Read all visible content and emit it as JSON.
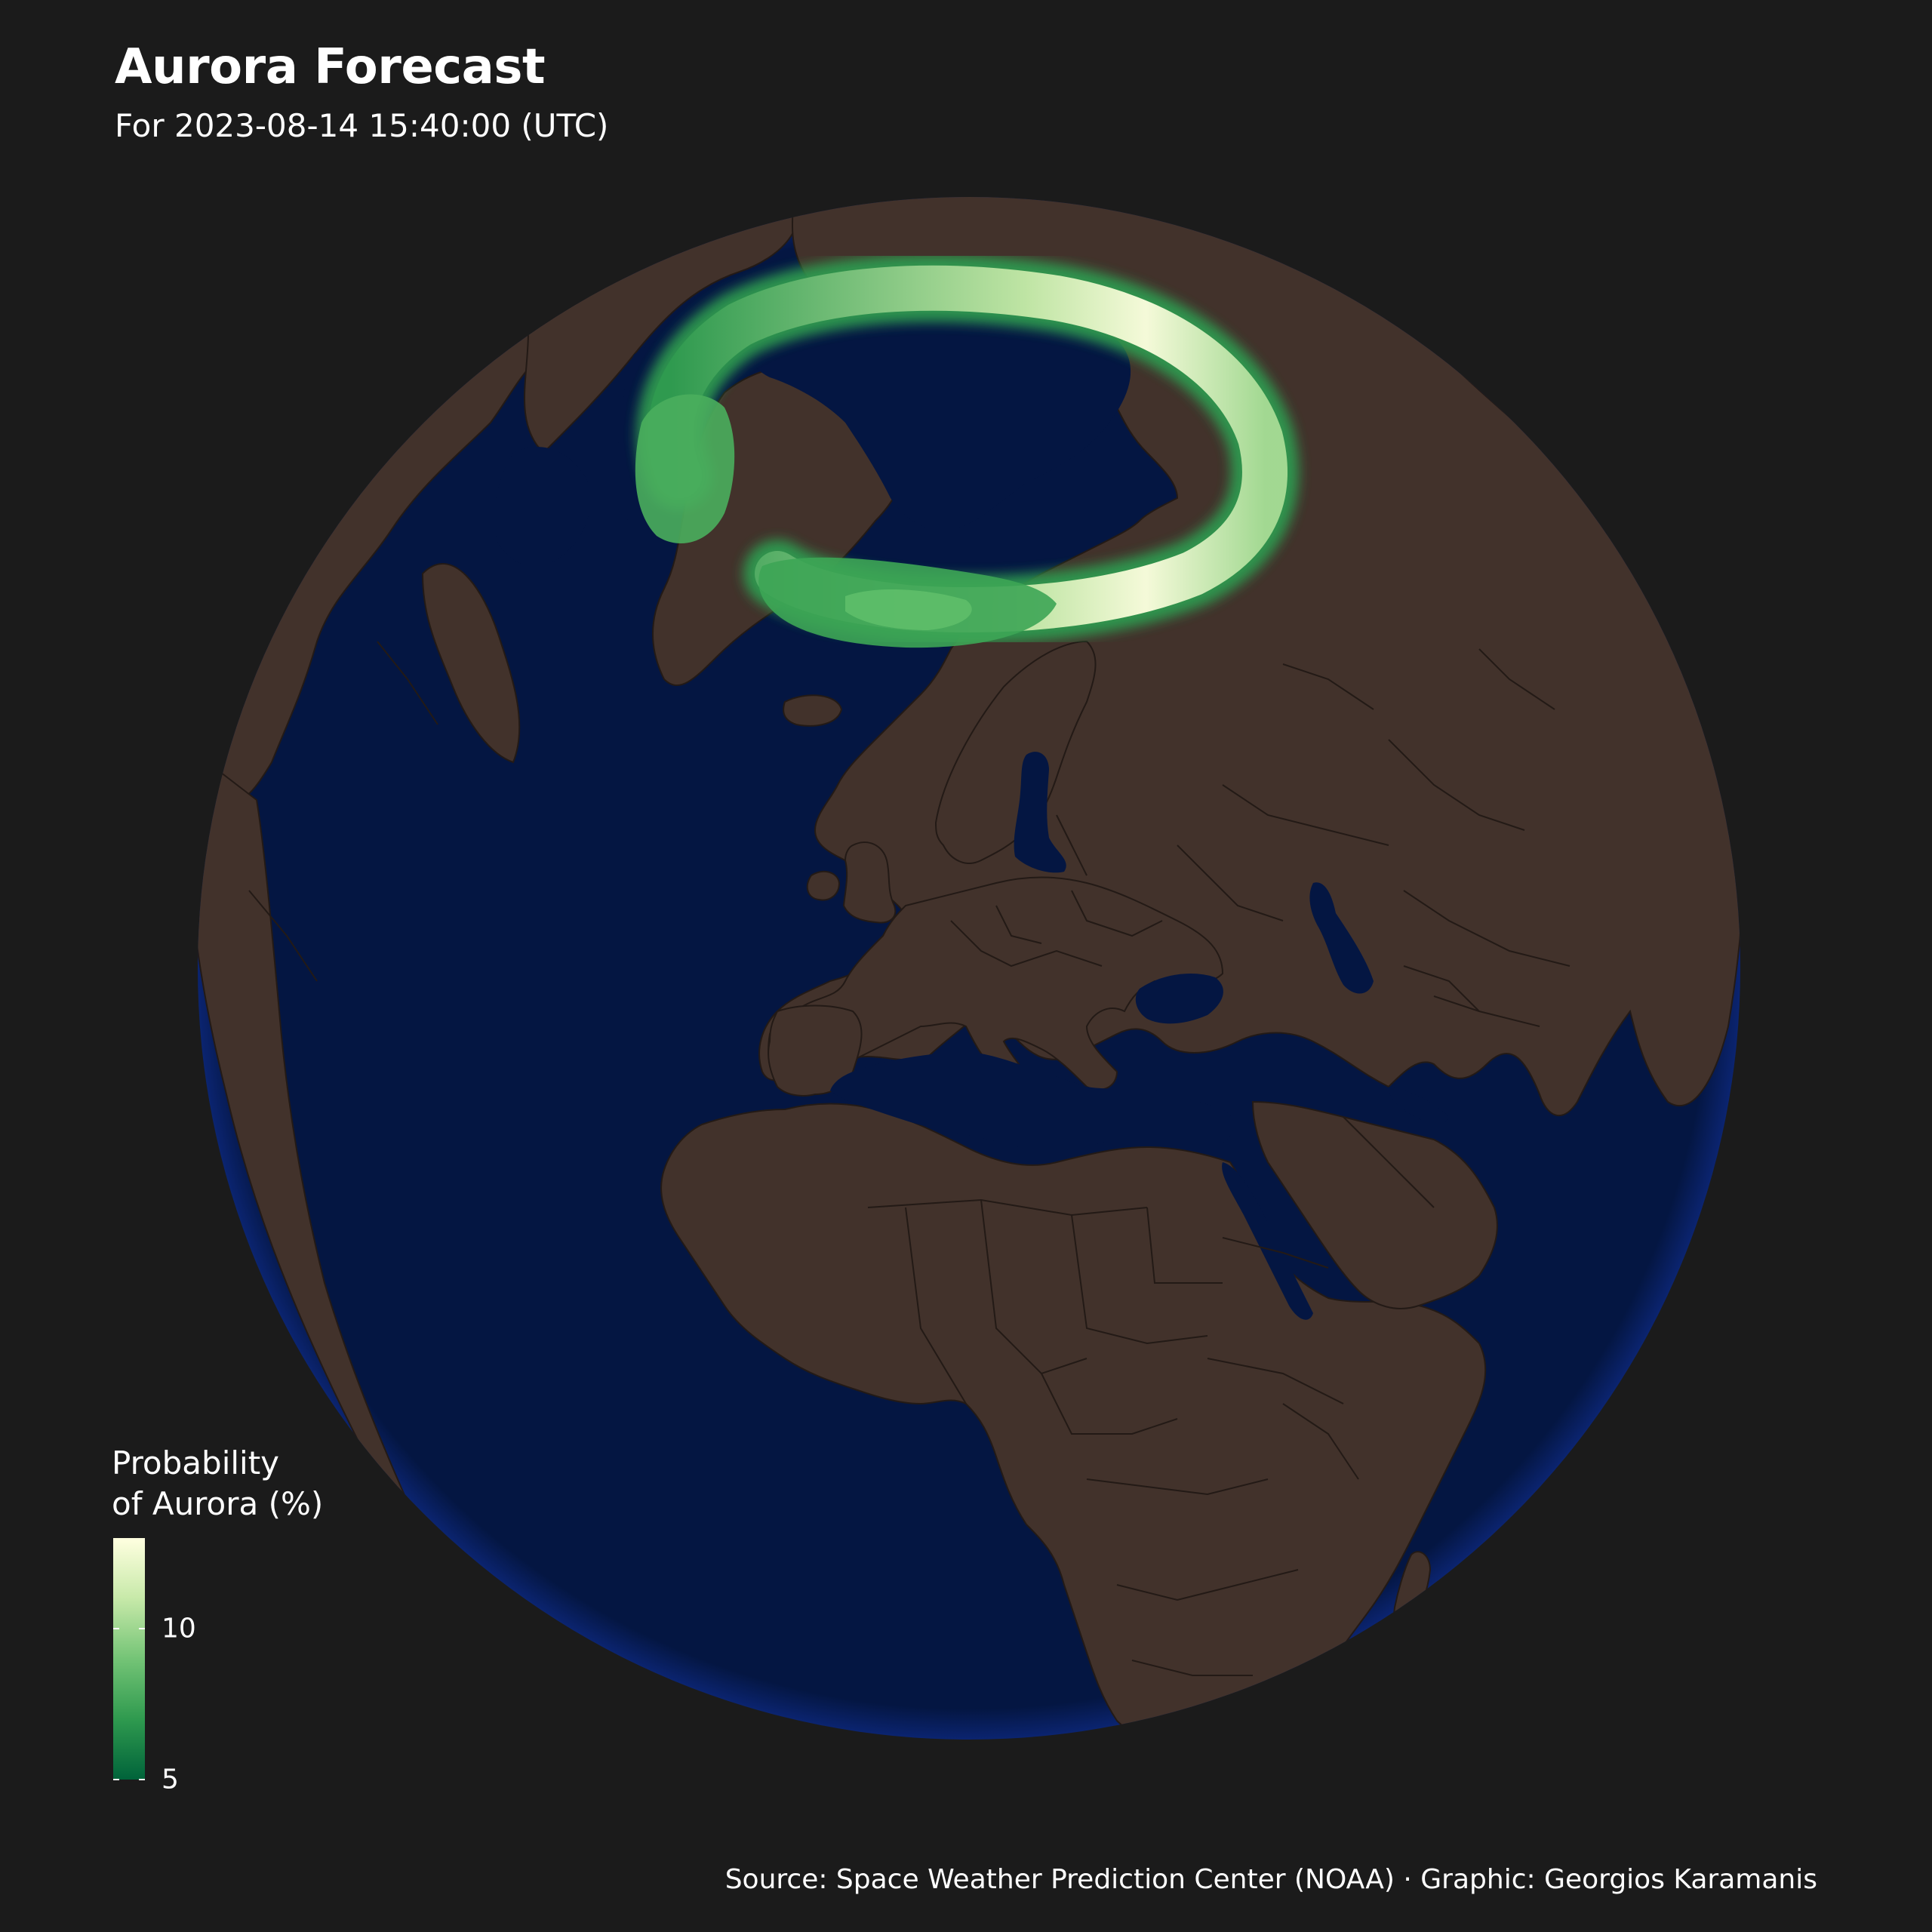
{
  "title": "Aurora Forecast",
  "subtitle": "For 2023-08-14 15:40:00 (UTC)",
  "legend": {
    "title": "Probability\nof Aurora (%)",
    "ticks": [
      {
        "value": 5,
        "label": "5"
      },
      {
        "value": 10,
        "label": "10"
      }
    ],
    "range": [
      5,
      13
    ],
    "colors": [
      "#00633a",
      "#2f9a4f",
      "#74c476",
      "#c7e9a9",
      "#ffffe0"
    ]
  },
  "caption": "Source: Space Weather Prediction Center (NOAA) · Graphic: Georgios Karamanis",
  "colors": {
    "background": "#1b1b1b",
    "ocean": "#041642",
    "land": "#42322b",
    "borders": "#231a16",
    "text": "#ffffff"
  }
}
